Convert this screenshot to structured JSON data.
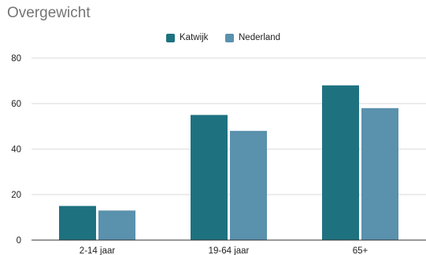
{
  "chart_data": {
    "type": "bar",
    "title": "Overgewicht",
    "categories": [
      "2-14 jaar",
      "19-64 jaar",
      "65+"
    ],
    "series": [
      {
        "name": "Katwijk",
        "values": [
          15,
          55,
          68
        ],
        "color": "#1e7280"
      },
      {
        "name": "Nederland",
        "values": [
          13,
          48,
          58
        ],
        "color": "#5a91ad"
      }
    ],
    "ylim": [
      0,
      80
    ],
    "yticks": [
      0,
      20,
      40,
      60,
      80
    ],
    "grid": true,
    "legend": "top-center"
  }
}
